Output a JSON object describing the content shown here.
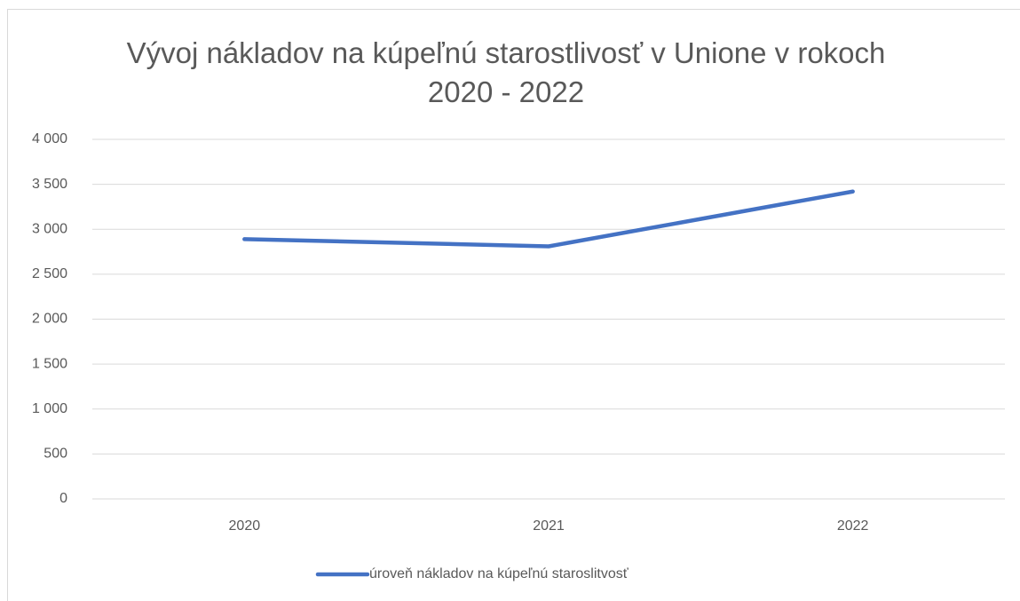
{
  "chart_data": {
    "type": "line",
    "title": "Vývoj nákladov na kúpeľnú starostlivosť v Unione v rokoch 2020 - 2022",
    "categories": [
      "2020",
      "2021",
      "2022"
    ],
    "series": [
      {
        "name": "úroveň nákladov na kúpeľnú staroslitvosť",
        "color": "#4472c4",
        "values": [
          2890,
          2810,
          3420
        ]
      }
    ],
    "ylim": [
      0,
      4000
    ],
    "yticks": [
      0,
      500,
      {
        "value": 1000,
        "label": "1 000"
      },
      {
        "value": 1500,
        "label": "1 500"
      },
      {
        "value": 2000,
        "label": "2 000"
      },
      {
        "value": 2500,
        "label": "2 500"
      },
      {
        "value": 3000,
        "label": "3 000"
      },
      {
        "value": 3500,
        "label": "3 500"
      },
      {
        "value": 4000,
        "label": "4 000"
      }
    ],
    "grid": true,
    "legend": "bottom"
  }
}
